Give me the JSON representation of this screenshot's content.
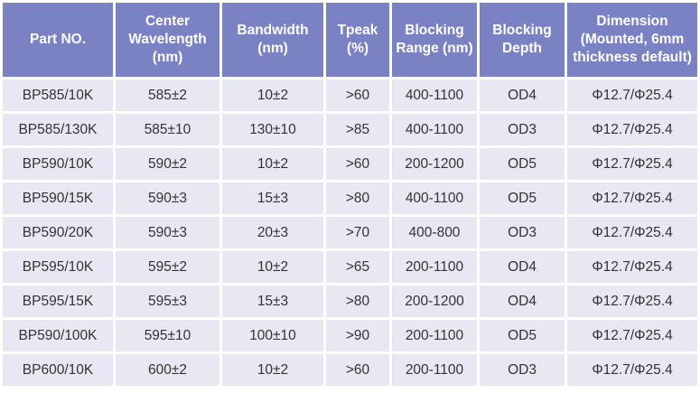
{
  "colors": {
    "header_bg": "#7a82c4",
    "row_bg": "#e7e8f2",
    "gridline": "#ffffff",
    "header_text": "#ffffff",
    "body_text": "#333333"
  },
  "table": {
    "columns": [
      {
        "label": "Part NO."
      },
      {
        "label": "Center Wavelength (nm)"
      },
      {
        "label": "Bandwidth (nm)"
      },
      {
        "label": "Tpeak (%)"
      },
      {
        "label": "Blocking Range (nm)"
      },
      {
        "label": "Blocking Depth"
      },
      {
        "label": "Dimension (Mounted, 6mm thickness default)"
      }
    ],
    "rows": [
      {
        "cells": [
          "BP585/10K",
          "585±2",
          "10±2",
          ">60",
          "400-1100",
          "OD4",
          "Φ12.7/Φ25.4"
        ]
      },
      {
        "cells": [
          "BP585/130K",
          "585±10",
          "130±10",
          ">85",
          "400-1100",
          "OD3",
          "Φ12.7/Φ25.4"
        ]
      },
      {
        "cells": [
          "BP590/10K",
          "590±2",
          "10±2",
          ">60",
          "200-1200",
          "OD5",
          "Φ12.7/Φ25.4"
        ]
      },
      {
        "cells": [
          "BP590/15K",
          "590±3",
          "15±3",
          ">80",
          "400-1100",
          "OD5",
          "Φ12.7/Φ25.4"
        ]
      },
      {
        "cells": [
          "BP590/20K",
          "590±3",
          "20±3",
          ">70",
          "400-800",
          "OD3",
          "Φ12.7/Φ25.4"
        ]
      },
      {
        "cells": [
          "BP595/10K",
          "595±2",
          "10±2",
          ">65",
          "200-1100",
          "OD4",
          "Φ12.7/Φ25.4"
        ]
      },
      {
        "cells": [
          "BP595/15K",
          "595±3",
          "15±3",
          ">80",
          "200-1200",
          "OD4",
          "Φ12.7/Φ25.4"
        ]
      },
      {
        "cells": [
          "BP590/100K",
          "595±10",
          "100±10",
          ">90",
          "200-1100",
          "OD5",
          "Φ12.7/Φ25.4"
        ]
      },
      {
        "cells": [
          "BP600/10K",
          "600±2",
          "10±2",
          ">60",
          "200-1100",
          "OD3",
          "Φ12.7/Φ25.4"
        ]
      }
    ]
  }
}
